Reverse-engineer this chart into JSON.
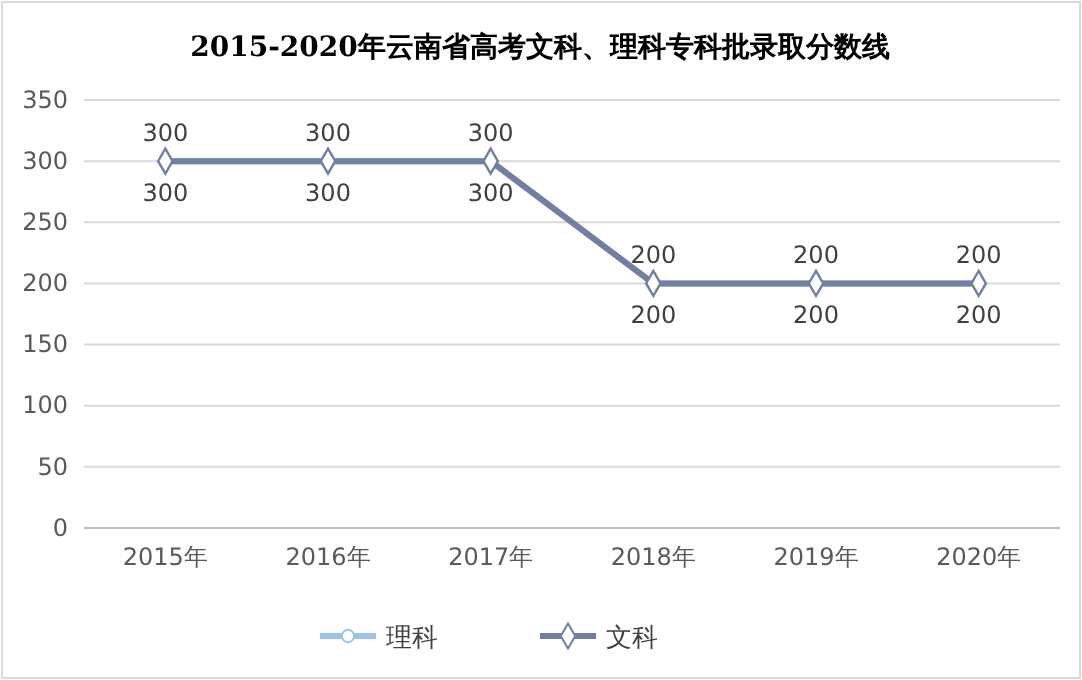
{
  "chart_data": {
    "type": "line",
    "title": "2015-2020年云南省高考文科、理科专科批录取分数线",
    "categories": [
      "2015年",
      "2016年",
      "2017年",
      "2018年",
      "2019年",
      "2020年"
    ],
    "series": [
      {
        "name": "理科",
        "color": "#9dc3e6",
        "marker": "circle",
        "values": [
          300,
          300,
          300,
          200,
          200,
          200
        ]
      },
      {
        "name": "文科",
        "color": "#717fa3",
        "marker": "diamond",
        "values": [
          300,
          300,
          300,
          200,
          200,
          200
        ]
      }
    ],
    "ylim": [
      0,
      350
    ],
    "yticks": [
      0,
      50,
      100,
      150,
      200,
      250,
      300,
      350
    ],
    "grid": "y",
    "legend": "bottom",
    "data_labels": true
  }
}
